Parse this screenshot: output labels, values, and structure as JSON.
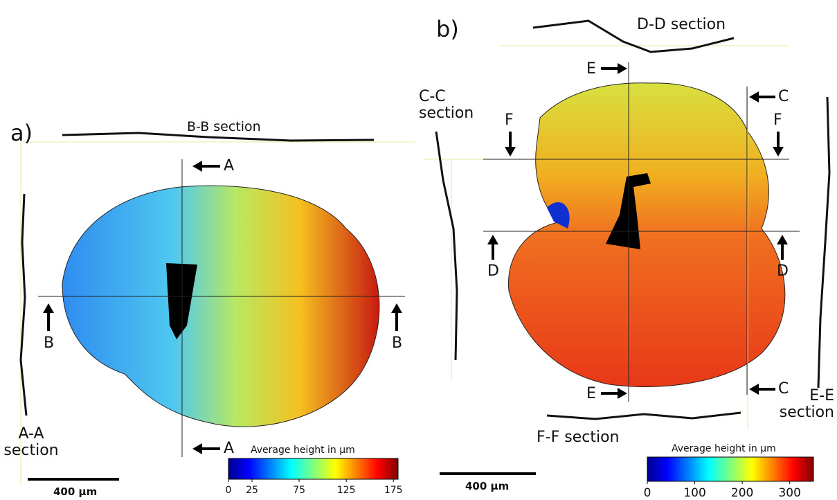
{
  "panels": [
    {
      "label": "a)",
      "top_section": "B-B section",
      "side_section": "A-A section",
      "arrow_top": "A",
      "arrow_bottom": "A",
      "arrow_left": "B",
      "arrow_right": "B",
      "scale_bar": "400 µm",
      "colorbar": {
        "title": "Average height in µm",
        "lim": [
          0,
          180
        ],
        "ticks": [
          0,
          25,
          75,
          125,
          175
        ]
      }
    },
    {
      "label": "b)",
      "top_section": "D-D section",
      "left_section": "C-C section",
      "right_section": "E-E section",
      "bottom_section": "F-F section",
      "arrow_e_top": "E",
      "arrow_e_bottom": "E",
      "arrow_c_top": "C",
      "arrow_c_bottom": "C",
      "arrow_f_left": "F",
      "arrow_f_right": "F",
      "arrow_d_left": "D",
      "arrow_d_right": "D",
      "scale_bar": "400 µm",
      "colorbar": {
        "title": "Average height in µm",
        "lim": [
          0,
          350
        ],
        "ticks": [
          0,
          100,
          200,
          300
        ]
      }
    }
  ]
}
